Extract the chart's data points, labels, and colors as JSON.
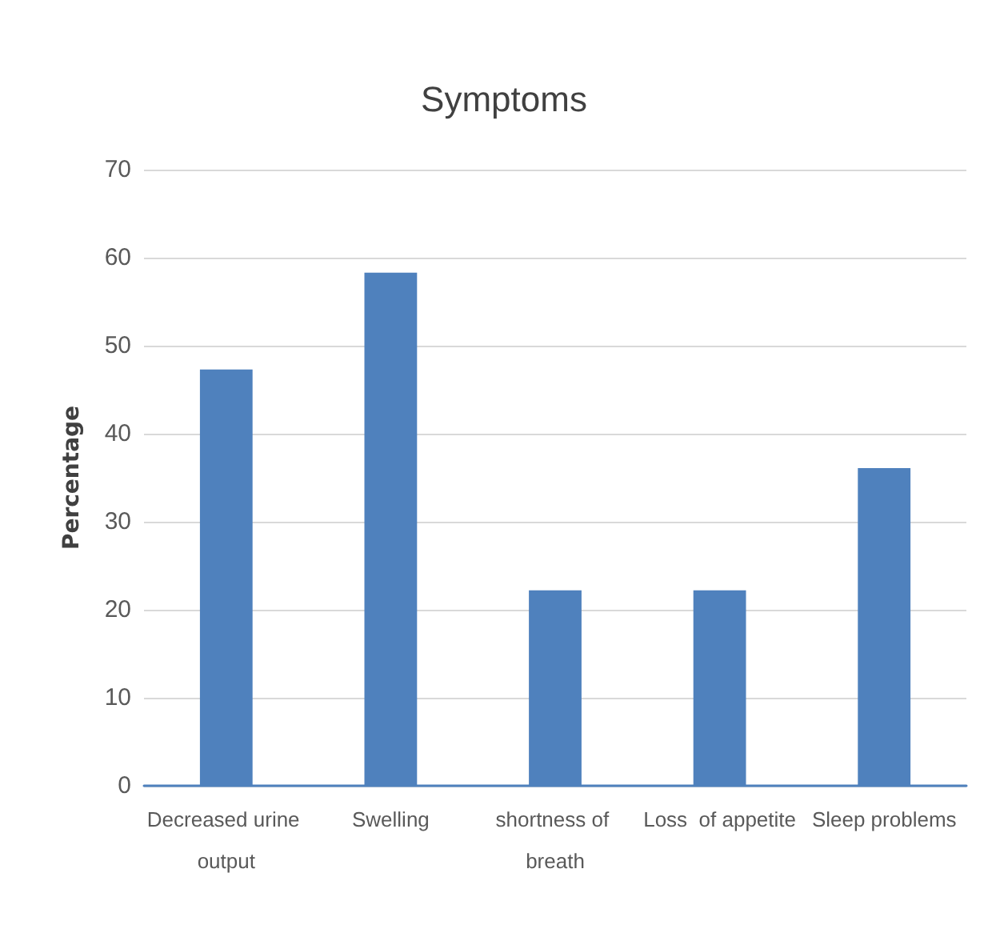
{
  "chart_data": {
    "type": "bar",
    "title": "Symptoms",
    "ylabel": "Percentage",
    "categories": [
      "Decreased urine output",
      "Swelling",
      "shortness of breath",
      "Loss  of appetite",
      "Sleep problems"
    ],
    "values": [
      47.3,
      58.3,
      22.2,
      22.2,
      36.1
    ],
    "color": "#4f81bd",
    "ylim": [
      0,
      70
    ],
    "yticks": [
      0,
      10,
      20,
      30,
      40,
      50,
      60,
      70
    ],
    "grid": "y"
  }
}
